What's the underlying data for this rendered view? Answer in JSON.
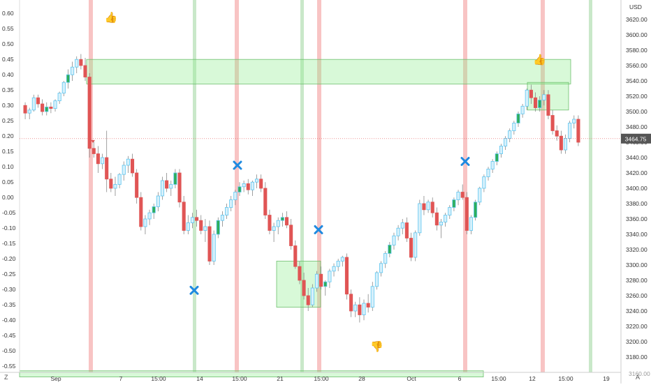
{
  "chart_data": {
    "type": "candlestick",
    "left_axis": {
      "ticks": [
        "0.60",
        "0.55",
        "0.50",
        "0.45",
        "0.40",
        "0.35",
        "0.30",
        "0.25",
        "0.20",
        "0.15",
        "0.10",
        "0.05",
        "0.00",
        "-0.05",
        "-0.10",
        "-0.15",
        "-0.20",
        "-0.25",
        "-0.30",
        "-0.35",
        "-0.40",
        "-0.45",
        "-0.50",
        "-0.55"
      ],
      "range": [
        -0.57,
        0.63
      ]
    },
    "right_axis": {
      "currency": "USD",
      "ticks": [
        "3620.00",
        "3600.00",
        "3580.00",
        "3560.00",
        "3540.00",
        "3520.00",
        "3500.00",
        "3480.00",
        "3460.00",
        "3440.00",
        "3420.00",
        "3400.00",
        "3380.00",
        "3360.00",
        "3340.00",
        "3320.00",
        "3300.00",
        "3280.00",
        "3260.00",
        "3240.00",
        "3220.00",
        "3200.00",
        "3180.00"
      ],
      "range": [
        3160,
        3640
      ],
      "last_price": "3464.75",
      "bottom_partial_label": "3160.00"
    },
    "x_ticks": [
      "Sep",
      "7",
      "15:00",
      "14",
      "15:00",
      "21",
      "15:00",
      "28",
      "Oct",
      "6",
      "15:00",
      "12",
      "15:00",
      "19"
    ],
    "corner_labels": {
      "left": "Z",
      "right": "A"
    },
    "candles": [
      [
        3508,
        3512,
        3490,
        3498
      ],
      [
        3498,
        3505,
        3490,
        3502
      ],
      [
        3502,
        3522,
        3500,
        3518
      ],
      [
        3518,
        3522,
        3505,
        3510
      ],
      [
        3510,
        3516,
        3495,
        3500
      ],
      [
        3500,
        3512,
        3495,
        3506
      ],
      [
        3506,
        3512,
        3498,
        3504
      ],
      [
        3504,
        3516,
        3500,
        3514
      ],
      [
        3514,
        3526,
        3510,
        3524
      ],
      [
        3524,
        3540,
        3520,
        3538
      ],
      [
        3538,
        3555,
        3530,
        3548
      ],
      [
        3548,
        3565,
        3540,
        3558
      ],
      [
        3558,
        3572,
        3550,
        3568
      ],
      [
        3568,
        3575,
        3555,
        3560
      ],
      [
        3560,
        3570,
        3540,
        3545
      ],
      [
        3545,
        3550,
        3440,
        3452
      ],
      [
        3452,
        3462,
        3440,
        3445
      ],
      [
        3445,
        3455,
        3420,
        3432
      ],
      [
        3432,
        3445,
        3425,
        3440
      ],
      [
        3440,
        3475,
        3395,
        3412
      ],
      [
        3412,
        3420,
        3395,
        3400
      ],
      [
        3400,
        3415,
        3390,
        3405
      ],
      [
        3405,
        3420,
        3400,
        3418
      ],
      [
        3418,
        3435,
        3410,
        3430
      ],
      [
        3430,
        3442,
        3420,
        3438
      ],
      [
        3438,
        3445,
        3415,
        3420
      ],
      [
        3420,
        3425,
        3380,
        3388
      ],
      [
        3388,
        3395,
        3345,
        3350
      ],
      [
        3350,
        3365,
        3340,
        3360
      ],
      [
        3360,
        3372,
        3352,
        3368
      ],
      [
        3368,
        3380,
        3360,
        3376
      ],
      [
        3376,
        3395,
        3370,
        3390
      ],
      [
        3390,
        3415,
        3385,
        3410
      ],
      [
        3410,
        3420,
        3395,
        3400
      ],
      [
        3400,
        3410,
        3390,
        3405
      ],
      [
        3405,
        3425,
        3400,
        3420
      ],
      [
        3420,
        3425,
        3375,
        3382
      ],
      [
        3382,
        3390,
        3340,
        3345
      ],
      [
        3345,
        3365,
        3340,
        3355
      ],
      [
        3355,
        3368,
        3348,
        3362
      ],
      [
        3362,
        3372,
        3350,
        3358
      ],
      [
        3358,
        3365,
        3340,
        3345
      ],
      [
        3345,
        3360,
        3330,
        3350
      ],
      [
        3350,
        3358,
        3300,
        3305
      ],
      [
        3305,
        3345,
        3300,
        3340
      ],
      [
        3340,
        3362,
        3335,
        3358
      ],
      [
        3358,
        3370,
        3350,
        3365
      ],
      [
        3365,
        3380,
        3360,
        3375
      ],
      [
        3375,
        3390,
        3370,
        3385
      ],
      [
        3385,
        3398,
        3378,
        3395
      ],
      [
        3395,
        3408,
        3390,
        3402
      ],
      [
        3402,
        3410,
        3395,
        3406
      ],
      [
        3406,
        3412,
        3392,
        3398
      ],
      [
        3398,
        3410,
        3390,
        3408
      ],
      [
        3408,
        3418,
        3400,
        3412
      ],
      [
        3412,
        3418,
        3395,
        3400
      ],
      [
        3400,
        3408,
        3360,
        3365
      ],
      [
        3365,
        3372,
        3340,
        3345
      ],
      [
        3345,
        3355,
        3330,
        3350
      ],
      [
        3350,
        3362,
        3340,
        3358
      ],
      [
        3358,
        3368,
        3350,
        3362
      ],
      [
        3362,
        3370,
        3348,
        3352
      ],
      [
        3352,
        3360,
        3320,
        3325
      ],
      [
        3325,
        3332,
        3295,
        3298
      ],
      [
        3298,
        3305,
        3275,
        3280
      ],
      [
        3280,
        3290,
        3255,
        3260
      ],
      [
        3260,
        3270,
        3240,
        3248
      ],
      [
        3248,
        3275,
        3245,
        3270
      ],
      [
        3270,
        3292,
        3265,
        3288
      ],
      [
        3288,
        3298,
        3268,
        3272
      ],
      [
        3272,
        3280,
        3260,
        3278
      ],
      [
        3278,
        3295,
        3270,
        3292
      ],
      [
        3292,
        3302,
        3285,
        3298
      ],
      [
        3298,
        3308,
        3292,
        3305
      ],
      [
        3305,
        3312,
        3298,
        3310
      ],
      [
        3310,
        3315,
        3255,
        3262
      ],
      [
        3262,
        3268,
        3232,
        3240
      ],
      [
        3240,
        3252,
        3232,
        3248
      ],
      [
        3248,
        3258,
        3225,
        3235
      ],
      [
        3235,
        3255,
        3228,
        3250
      ],
      [
        3250,
        3262,
        3238,
        3245
      ],
      [
        3245,
        3278,
        3240,
        3272
      ],
      [
        3272,
        3292,
        3268,
        3290
      ],
      [
        3290,
        3305,
        3285,
        3302
      ],
      [
        3302,
        3318,
        3296,
        3315
      ],
      [
        3315,
        3330,
        3310,
        3326
      ],
      [
        3326,
        3342,
        3320,
        3338
      ],
      [
        3338,
        3352,
        3332,
        3348
      ],
      [
        3348,
        3360,
        3340,
        3355
      ],
      [
        3355,
        3362,
        3330,
        3335
      ],
      [
        3335,
        3342,
        3305,
        3310
      ],
      [
        3310,
        3345,
        3305,
        3342
      ],
      [
        3342,
        3385,
        3338,
        3380
      ],
      [
        3380,
        3390,
        3365,
        3372
      ],
      [
        3372,
        3385,
        3368,
        3382
      ],
      [
        3382,
        3388,
        3362,
        3368
      ],
      [
        3368,
        3375,
        3345,
        3352
      ],
      [
        3352,
        3360,
        3335,
        3356
      ],
      [
        3356,
        3368,
        3350,
        3365
      ],
      [
        3365,
        3378,
        3360,
        3375
      ],
      [
        3375,
        3388,
        3370,
        3385
      ],
      [
        3385,
        3398,
        3378,
        3395
      ],
      [
        3395,
        3405,
        3385,
        3388
      ],
      [
        3388,
        3395,
        3340,
        3345
      ],
      [
        3345,
        3365,
        3340,
        3362
      ],
      [
        3362,
        3385,
        3358,
        3382
      ],
      [
        3382,
        3402,
        3378,
        3400
      ],
      [
        3400,
        3418,
        3395,
        3415
      ],
      [
        3415,
        3428,
        3410,
        3425
      ],
      [
        3425,
        3438,
        3420,
        3435
      ],
      [
        3435,
        3448,
        3430,
        3445
      ],
      [
        3445,
        3458,
        3440,
        3455
      ],
      [
        3455,
        3468,
        3450,
        3465
      ],
      [
        3465,
        3478,
        3460,
        3475
      ],
      [
        3475,
        3488,
        3470,
        3485
      ],
      [
        3485,
        3500,
        3480,
        3497
      ],
      [
        3497,
        3510,
        3492,
        3507
      ],
      [
        3507,
        3530,
        3502,
        3528
      ],
      [
        3528,
        3535,
        3510,
        3518
      ],
      [
        3518,
        3525,
        3500,
        3505
      ],
      [
        3505,
        3520,
        3500,
        3515
      ],
      [
        3515,
        3528,
        3508,
        3522
      ],
      [
        3522,
        3528,
        3490,
        3495
      ],
      [
        3495,
        3502,
        3470,
        3475
      ],
      [
        3475,
        3482,
        3462,
        3468
      ],
      [
        3468,
        3475,
        3445,
        3450
      ],
      [
        3450,
        3470,
        3445,
        3465
      ],
      [
        3465,
        3488,
        3460,
        3485
      ],
      [
        3485,
        3495,
        3478,
        3490
      ],
      [
        3490,
        3495,
        3455,
        3460
      ]
    ],
    "highlight_columns": {
      "red": [
        130,
        339,
        457,
        666,
        777
      ],
      "green": [
        278,
        432,
        845
      ]
    },
    "zones": [
      {
        "from": 3536,
        "to": 3568
      },
      {
        "from": 3502,
        "to": 3538
      },
      {
        "from": 3245,
        "to": 3305
      },
      {
        "from": 3154,
        "to": 3162
      }
    ],
    "markers": {
      "thumbs_up": [
        [
          2,
          3618
        ],
        [
          12,
          3563
        ]
      ],
      "thumbs_down": [
        [
          20,
          3189
        ]
      ],
      "crosses": [
        [
          5,
          3267
        ],
        [
          6,
          3430
        ],
        [
          7,
          3346
        ],
        [
          10,
          3435
        ]
      ],
      "tiny_down": [
        3461
      ]
    }
  }
}
